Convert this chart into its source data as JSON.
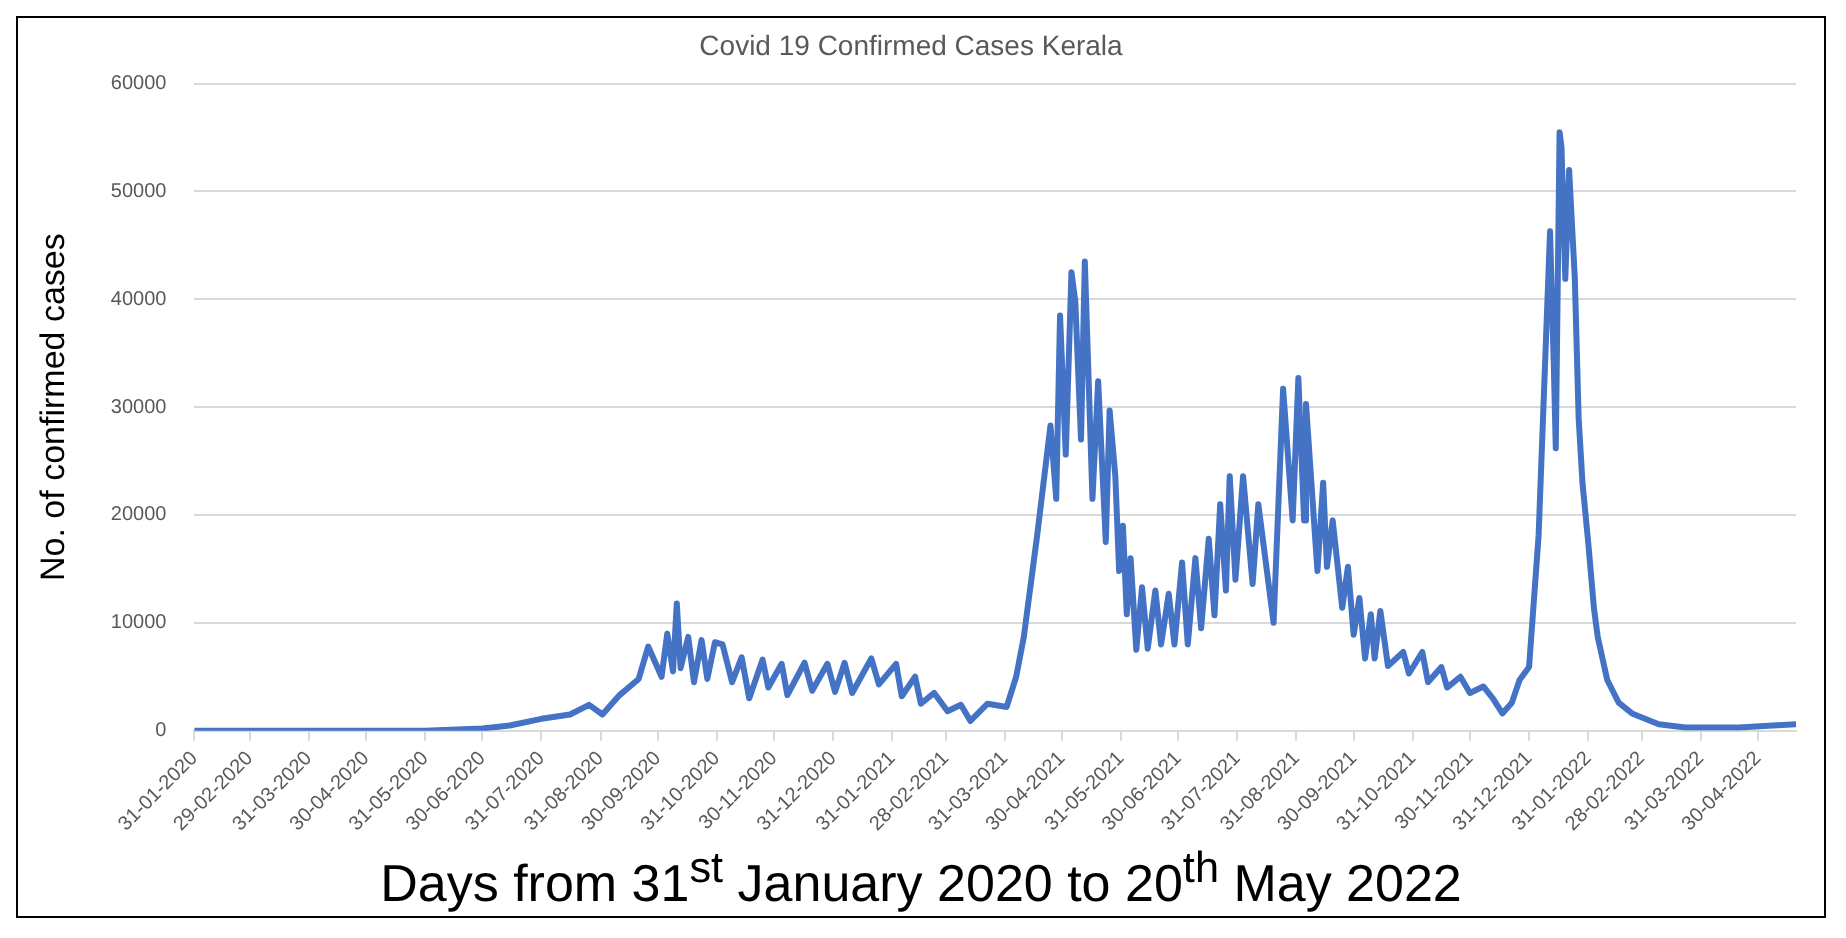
{
  "chart_data": {
    "type": "line",
    "title": "Covid 19 Confirmed Cases Kerala",
    "xlabel": "Days from 31$^{st}$ January 2020 to 20$^{th}$ May 2022",
    "ylabel": "No. of confirmed cases",
    "x": [
      "2020-01-31",
      "2020-03-31",
      "2020-05-31",
      "2020-06-30",
      "2020-07-15",
      "2020-07-31",
      "2020-08-15",
      "2020-08-25",
      "2020-09-01",
      "2020-09-10",
      "2020-09-20",
      "2020-09-25",
      "2020-10-02",
      "2020-10-05",
      "2020-10-08",
      "2020-10-10",
      "2020-10-12",
      "2020-10-16",
      "2020-10-19",
      "2020-10-23",
      "2020-10-26",
      "2020-10-30",
      "2020-11-03",
      "2020-11-08",
      "2020-11-13",
      "2020-11-17",
      "2020-11-24",
      "2020-11-27",
      "2020-12-04",
      "2020-12-07",
      "2020-12-16",
      "2020-12-20",
      "2020-12-28",
      "2021-01-01",
      "2021-01-06",
      "2021-01-10",
      "2021-01-20",
      "2021-01-24",
      "2021-02-02",
      "2021-02-05",
      "2021-02-12",
      "2021-02-15",
      "2021-02-22",
      "2021-03-01",
      "2021-03-08",
      "2021-03-13",
      "2021-03-22",
      "2021-04-01",
      "2021-04-06",
      "2021-04-10",
      "2021-04-17",
      "2021-04-24",
      "2021-04-27",
      "2021-04-29",
      "2021-05-02",
      "2021-05-05",
      "2021-05-07",
      "2021-05-10",
      "2021-05-12",
      "2021-05-16",
      "2021-05-19",
      "2021-05-23",
      "2021-05-25",
      "2021-05-28",
      "2021-05-30",
      "2021-06-01",
      "2021-06-03",
      "2021-06-05",
      "2021-06-08",
      "2021-06-11",
      "2021-06-14",
      "2021-06-18",
      "2021-06-21",
      "2021-06-25",
      "2021-06-28",
      "2021-07-02",
      "2021-07-05",
      "2021-07-09",
      "2021-07-12",
      "2021-07-16",
      "2021-07-19",
      "2021-07-22",
      "2021-07-25",
      "2021-07-27",
      "2021-07-30",
      "2021-08-03",
      "2021-08-08",
      "2021-08-11",
      "2021-08-19",
      "2021-08-24",
      "2021-08-29",
      "2021-09-01",
      "2021-09-04",
      "2021-09-05",
      "2021-09-11",
      "2021-09-14",
      "2021-09-16",
      "2021-09-19",
      "2021-09-24",
      "2021-09-27",
      "2021-09-30",
      "2021-10-03",
      "2021-10-06",
      "2021-10-09",
      "2021-10-11",
      "2021-10-14",
      "2021-10-18",
      "2021-10-26",
      "2021-10-29",
      "2021-11-05",
      "2021-11-08",
      "2021-11-15",
      "2021-11-18",
      "2021-11-25",
      "2021-11-30",
      "2021-12-07",
      "2021-12-12",
      "2021-12-17",
      "2021-12-22",
      "2021-12-26",
      "2021-12-31",
      "2022-01-05",
      "2022-01-11",
      "2022-01-13",
      "2022-01-14",
      "2022-01-16",
      "2022-01-17",
      "2022-01-19",
      "2022-01-21",
      "2022-01-24",
      "2022-01-26",
      "2022-01-28",
      "2022-01-31",
      "2022-02-03",
      "2022-02-05",
      "2022-02-10",
      "2022-02-16",
      "2022-02-23",
      "2022-03-09",
      "2022-03-23",
      "2022-04-20",
      "2022-05-10",
      "2022-05-20"
    ],
    "series": [
      {
        "color": "#4472c4",
        "values": [
          0,
          0,
          0,
          200,
          500,
          1100,
          1500,
          2400,
          1500,
          3300,
          4800,
          7800,
          5000,
          9000,
          5500,
          11800,
          5800,
          8700,
          4500,
          8400,
          4800,
          8200,
          8000,
          4500,
          6800,
          3000,
          6600,
          4000,
          6200,
          3300,
          6300,
          3700,
          6200,
          3600,
          6300,
          3500,
          6700,
          4300,
          6200,
          3200,
          5000,
          2500,
          3500,
          1800,
          2400,
          900,
          2500,
          2200,
          5000,
          8700,
          18100,
          28300,
          21500,
          38500,
          25600,
          42500,
          39800,
          27000,
          43500,
          21500,
          32400,
          17500,
          29700,
          23600,
          14800,
          19000,
          10800,
          16000,
          7500,
          13300,
          7600,
          13000,
          8000,
          12700,
          8000,
          15600,
          8000,
          16000,
          9500,
          17800,
          10700,
          21000,
          13000,
          23600,
          14000,
          23600,
          13600,
          21000,
          10000,
          31700,
          19500,
          32700,
          19500,
          30300,
          14800,
          23000,
          15200,
          19500,
          11400,
          15200,
          8900,
          12300,
          6700,
          10800,
          6700,
          11100,
          6000,
          7300,
          5300,
          7300,
          4500,
          5900,
          4000,
          5000,
          3500,
          4100,
          3000,
          1600,
          2600,
          4700,
          5900,
          18100,
          46300,
          33700,
          26200,
          55500,
          54100,
          41900,
          52000,
          41900,
          29000,
          23000,
          17500,
          11400,
          8700,
          4700,
          2600,
          1600,
          600,
          300,
          300,
          500,
          600
        ]
      }
    ],
    "xlim": [
      "2020-01-31",
      "2022-05-20"
    ],
    "xticks": [
      {
        "value": "2020-01-31",
        "label": "31-01-2020"
      },
      {
        "value": "2020-02-29",
        "label": "29-02-2020"
      },
      {
        "value": "2020-03-31",
        "label": "31-03-2020"
      },
      {
        "value": "2020-04-30",
        "label": "30-04-2020"
      },
      {
        "value": "2020-05-31",
        "label": "31-05-2020"
      },
      {
        "value": "2020-06-30",
        "label": "30-06-2020"
      },
      {
        "value": "2020-07-31",
        "label": "31-07-2020"
      },
      {
        "value": "2020-08-31",
        "label": "31-08-2020"
      },
      {
        "value": "2020-09-30",
        "label": "30-09-2020"
      },
      {
        "value": "2020-10-31",
        "label": "31-10-2020"
      },
      {
        "value": "2020-11-30",
        "label": "30-11-2020"
      },
      {
        "value": "2020-12-31",
        "label": "31-12-2020"
      },
      {
        "value": "2021-01-31",
        "label": "31-01-2021"
      },
      {
        "value": "2021-02-28",
        "label": "28-02-2021"
      },
      {
        "value": "2021-03-31",
        "label": "31-03-2021"
      },
      {
        "value": "2021-04-30",
        "label": "30-04-2021"
      },
      {
        "value": "2021-05-31",
        "label": "31-05-2021"
      },
      {
        "value": "2021-06-30",
        "label": "30-06-2021"
      },
      {
        "value": "2021-07-31",
        "label": "31-07-2021"
      },
      {
        "value": "2021-08-31",
        "label": "31-08-2021"
      },
      {
        "value": "2021-09-30",
        "label": "30-09-2021"
      },
      {
        "value": "2021-10-31",
        "label": "31-10-2021"
      },
      {
        "value": "2021-11-30",
        "label": "30-11-2021"
      },
      {
        "value": "2021-12-31",
        "label": "31-12-2021"
      },
      {
        "value": "2022-01-31",
        "label": "31-01-2022"
      },
      {
        "value": "2022-02-28",
        "label": "28-02-2022"
      },
      {
        "value": "2022-03-31",
        "label": "31-03-2022"
      },
      {
        "value": "2022-04-30",
        "label": "30-04-2022"
      }
    ],
    "ylim": [
      0,
      60000
    ],
    "yticks": [
      0,
      10000,
      20000,
      30000,
      40000,
      50000,
      60000
    ],
    "grid": "y",
    "legend": false,
    "marker": "none",
    "line_style": "solid"
  }
}
